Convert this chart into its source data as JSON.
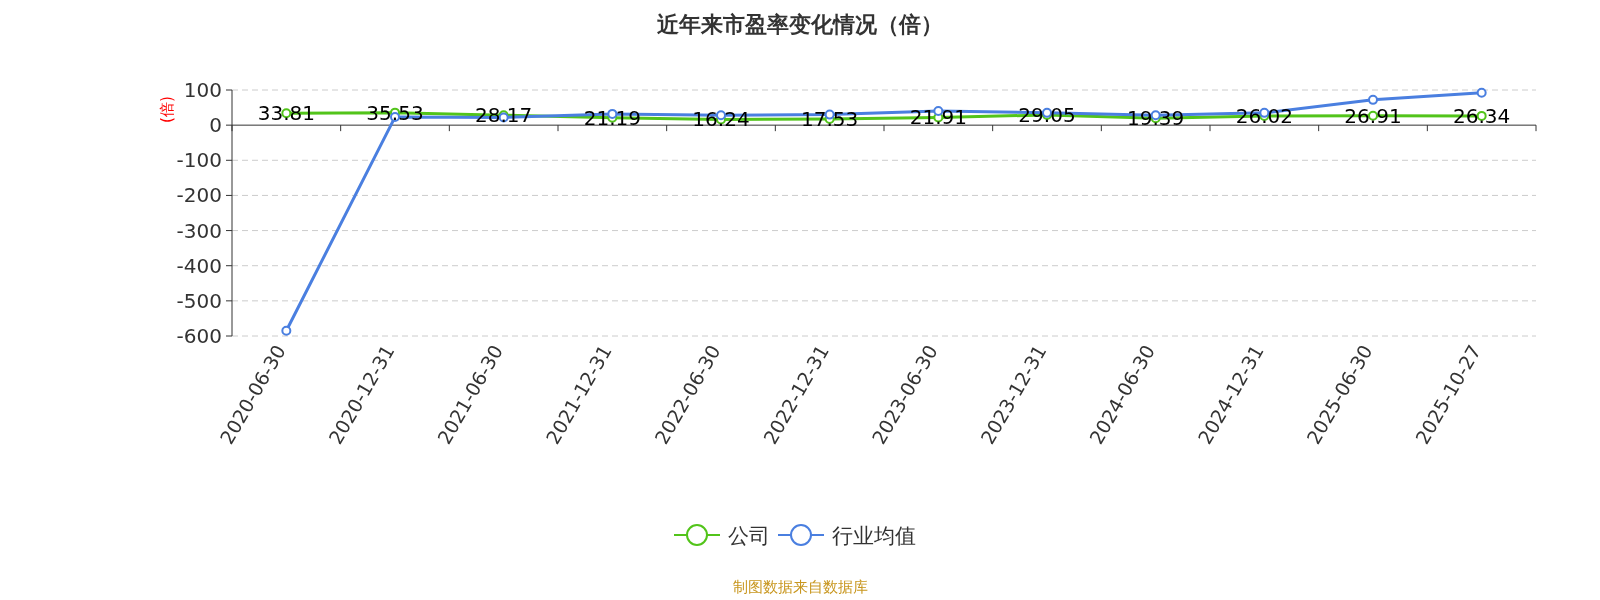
{
  "chart_data": {
    "type": "line",
    "title": "近年来市盈率变化情况（倍）",
    "ylabel": "(倍)",
    "categories": [
      "2020-06-30",
      "2020-12-31",
      "2021-06-30",
      "2021-12-31",
      "2022-06-30",
      "2022-12-31",
      "2023-06-30",
      "2023-12-31",
      "2024-06-30",
      "2024-12-31",
      "2025-06-30",
      "2025-10-27"
    ],
    "series": [
      {
        "name": "公司",
        "color": "#52c41a",
        "values": [
          33.81,
          35.53,
          28.17,
          21.19,
          16.24,
          17.53,
          21.91,
          29.05,
          19.39,
          26.02,
          26.91,
          26.34
        ],
        "value_labels": [
          "33.81",
          "35.53",
          "28.17",
          "21.19",
          "16.24",
          "17.53",
          "21.91",
          "29.05",
          "19.39",
          "26.02",
          "26.91",
          "26.34"
        ]
      },
      {
        "name": "行业均值",
        "color": "#4a7fe0",
        "values": [
          -585,
          23,
          22,
          32,
          28,
          30,
          40,
          35,
          28,
          35,
          72,
          92
        ]
      }
    ],
    "ylim": [
      -600,
      100
    ],
    "yticks": [
      -600,
      -500,
      -400,
      -300,
      -200,
      -100,
      0,
      100
    ],
    "grid": "y",
    "legend": "bottom",
    "marker": "circle",
    "line_style": "solid",
    "annotations": [
      "制图数据来自数据库"
    ]
  }
}
